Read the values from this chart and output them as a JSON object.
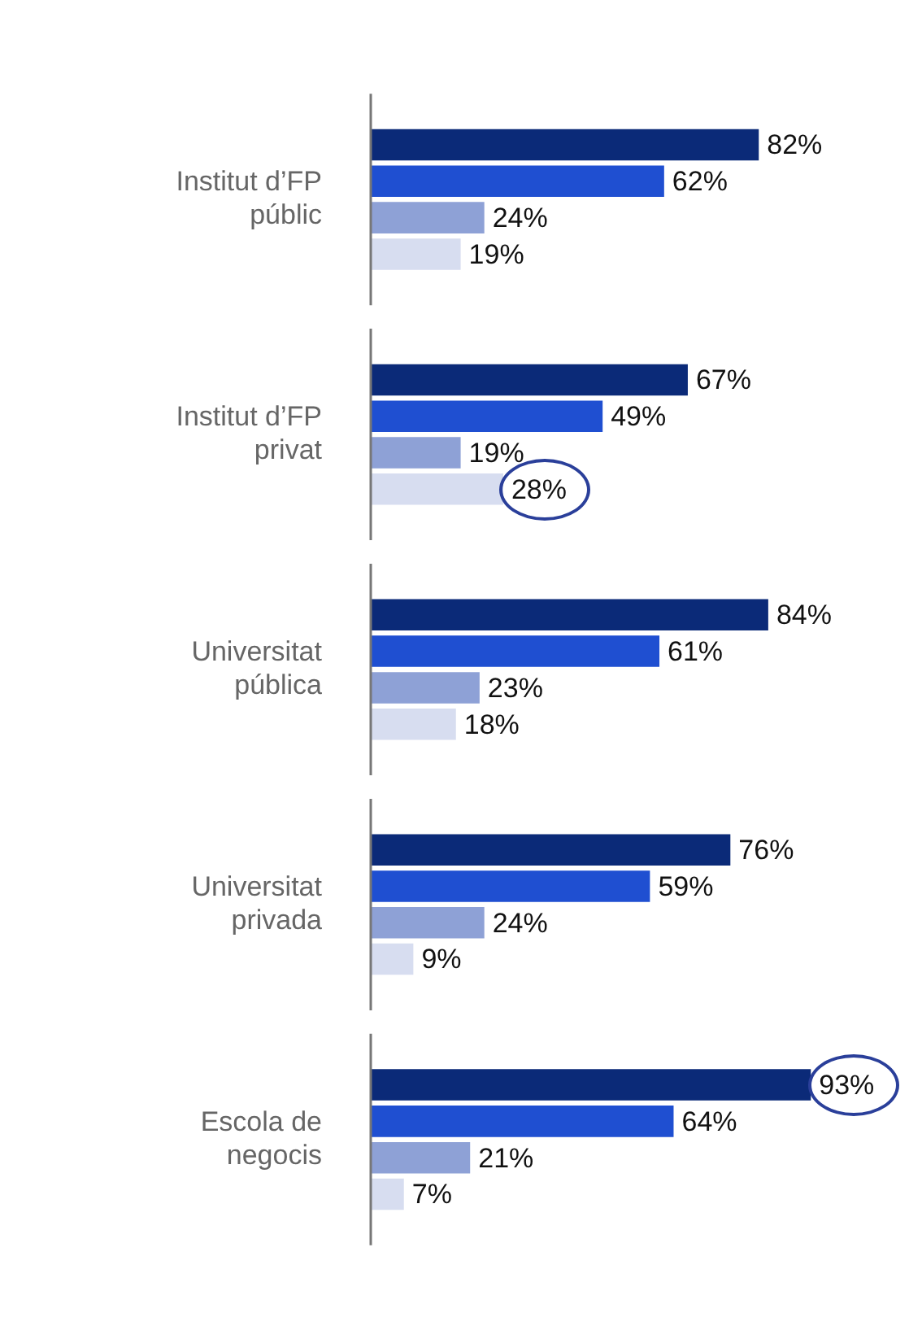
{
  "chart_data": {
    "type": "bar",
    "orientation": "horizontal",
    "categories": [
      "Institut d’FP públic",
      "Institut d’FP privat",
      "Universitat pública",
      "Universitat privada",
      "Escola de negocis"
    ],
    "series": [
      {
        "color": "#0b2a78",
        "values": [
          82,
          67,
          84,
          76,
          93
        ],
        "value_labels": [
          "82%",
          "67%",
          "84%",
          "76%",
          "93%"
        ]
      },
      {
        "color": "#1f4fd1",
        "values": [
          62,
          49,
          61,
          59,
          64
        ],
        "value_labels": [
          "62%",
          "49%",
          "61%",
          "59%",
          "64%"
        ]
      },
      {
        "color": "#8ea1d6",
        "values": [
          24,
          19,
          23,
          24,
          21
        ],
        "value_labels": [
          "24%",
          "19%",
          "23%",
          "24%",
          "21%"
        ]
      },
      {
        "color": "#d7ddf0",
        "values": [
          19,
          28,
          18,
          9,
          7
        ],
        "value_labels": [
          "19%",
          "28%",
          "18%",
          "9%",
          "7%"
        ]
      }
    ],
    "tick_labels": "y",
    "grid": false,
    "legend": false
  }
}
